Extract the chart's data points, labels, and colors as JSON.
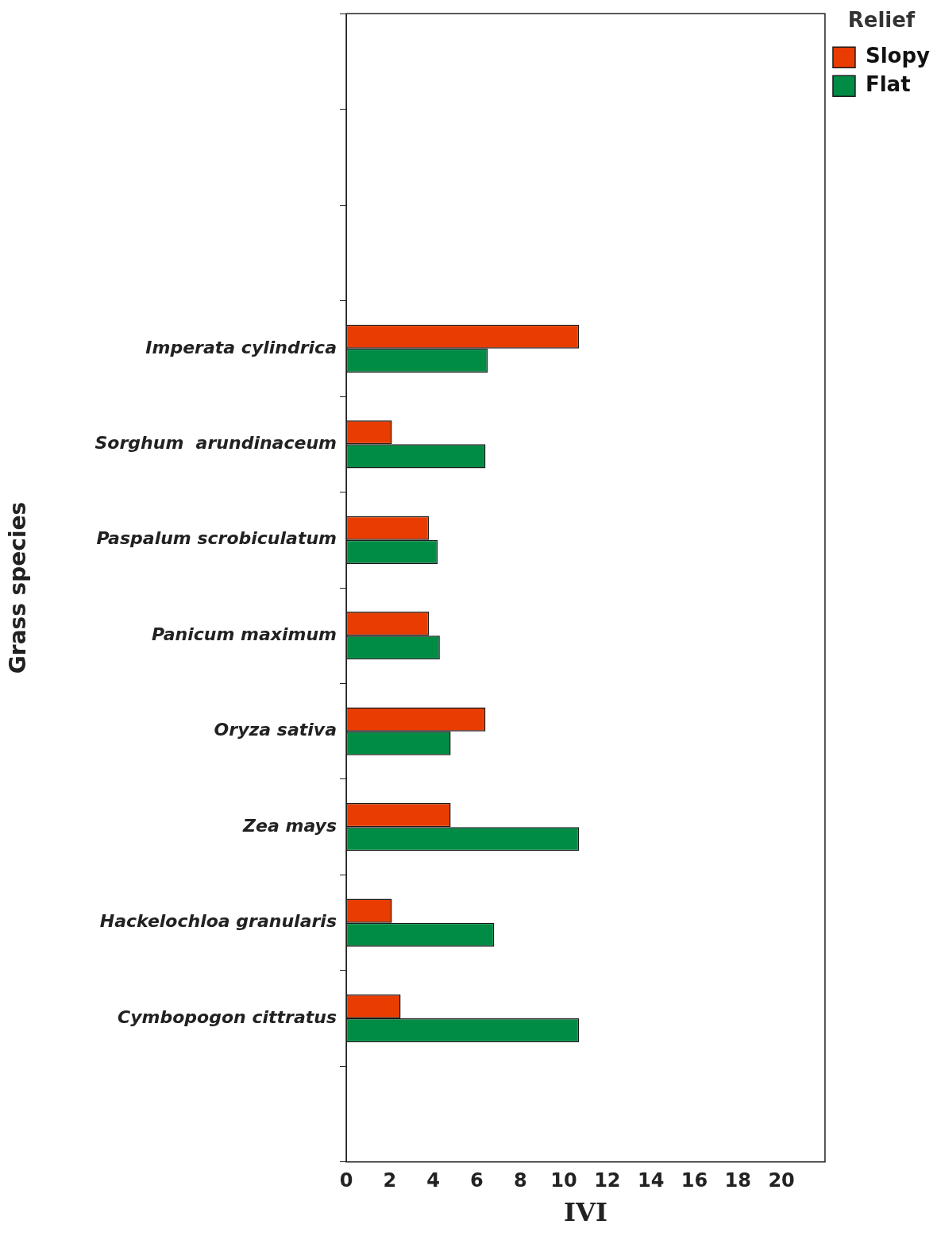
{
  "chart_data": {
    "type": "bar",
    "orientation": "horizontal",
    "xlabel": "IVI",
    "ylabel": "Grass species",
    "legend_title": "Relief",
    "legend": "top right",
    "grid": false,
    "categories": [
      null,
      null,
      null,
      "Imperata cylindrica",
      "Sorghum  arundinaceum",
      "Paspalum scrobiculatum",
      "Panicum maximum",
      "Oryza sativa",
      "Zea mays",
      "Hackelochloa granularis",
      "Cymbopogon cittratus",
      null
    ],
    "series": [
      {
        "name": "Slopy",
        "color": "#e83c00",
        "values": [
          null,
          null,
          null,
          10.7,
          2.1,
          3.8,
          3.8,
          6.4,
          4.8,
          2.1,
          2.5,
          null
        ]
      },
      {
        "name": "Flat",
        "color": "#008c45",
        "values": [
          null,
          null,
          null,
          6.5,
          6.4,
          4.2,
          4.3,
          4.8,
          10.7,
          6.8,
          10.7,
          null
        ]
      }
    ],
    "xlim": [
      0,
      22
    ],
    "xticks": [
      0,
      2,
      4,
      6,
      8,
      10,
      12,
      14,
      16,
      18,
      20
    ]
  }
}
